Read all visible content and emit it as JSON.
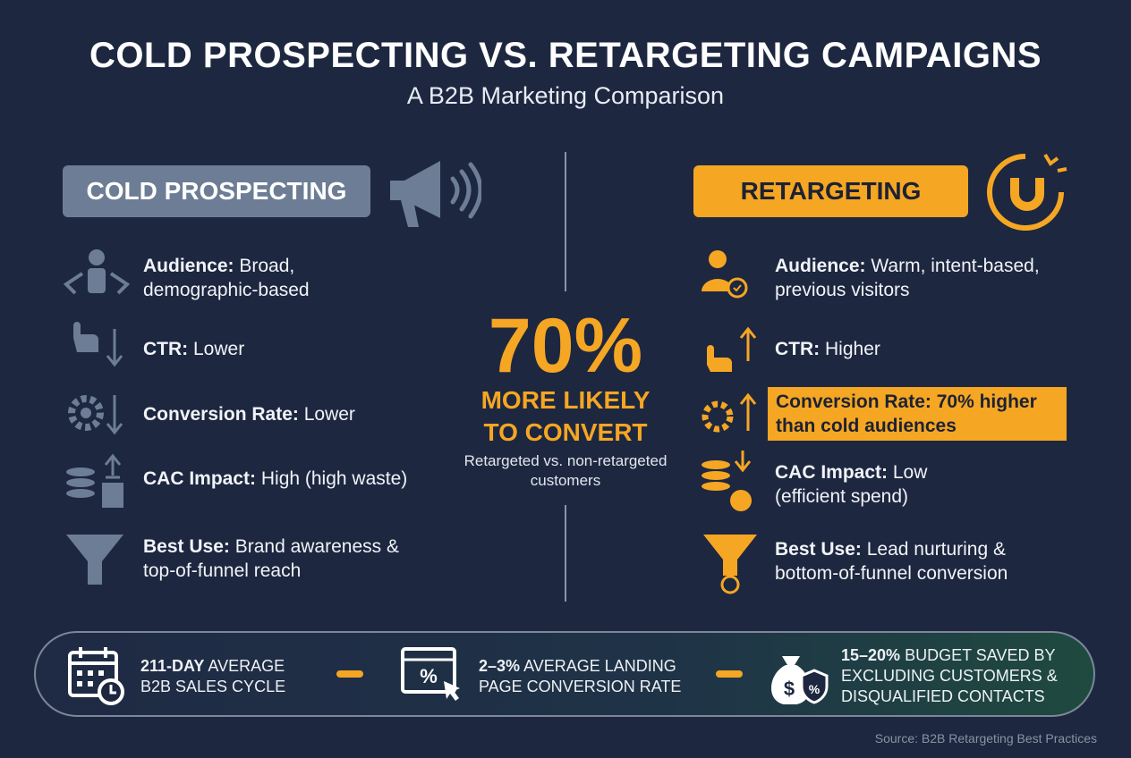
{
  "header": {
    "title": "COLD PROSPECTING VS. RETARGETING CAMPAIGNS",
    "subtitle": "A B2B Marketing Comparison"
  },
  "left": {
    "title": "COLD PROSPECTING",
    "items": [
      {
        "label": "Audience:",
        "text": "Broad, demographic-based"
      },
      {
        "label": "CTR:",
        "text": "Lower"
      },
      {
        "label": "Conversion Rate:",
        "text": "Lower"
      },
      {
        "label": "CAC Impact:",
        "text": "High (high waste)"
      },
      {
        "label": "Best Use:",
        "text": "Brand awareness & top-of-funnel reach"
      }
    ]
  },
  "center": {
    "big": "70%",
    "headline": "MORE LIKELY TO CONVERT",
    "note": "Retargeted vs. non-retargeted customers"
  },
  "right": {
    "title": "RETARGETING",
    "items": [
      {
        "label": "Audience:",
        "text": "Warm, intent-based, previous visitors"
      },
      {
        "label": "CTR:",
        "text": "Higher"
      },
      {
        "label": "Conversion Rate:",
        "text": "70% higher than cold audiences"
      },
      {
        "label": "CAC Impact:",
        "text": "Low (efficient spend)"
      },
      {
        "label": "Best Use:",
        "text": "Lead nurturing & bottom-of-funnel conversion"
      }
    ]
  },
  "footer": {
    "stats": [
      {
        "strong": "211-DAY",
        "text": "AVERAGE B2B SALES CYCLE"
      },
      {
        "strong": "2–3%",
        "text": "AVERAGE LANDING PAGE CONVERSION RATE"
      },
      {
        "strong": "15–20%",
        "text": "BUDGET SAVED BY EXCLUDING CUSTOMERS & DISQUALIFIED CONTACTS"
      }
    ],
    "source": "Source: B2B Retargeting Best Practices"
  }
}
